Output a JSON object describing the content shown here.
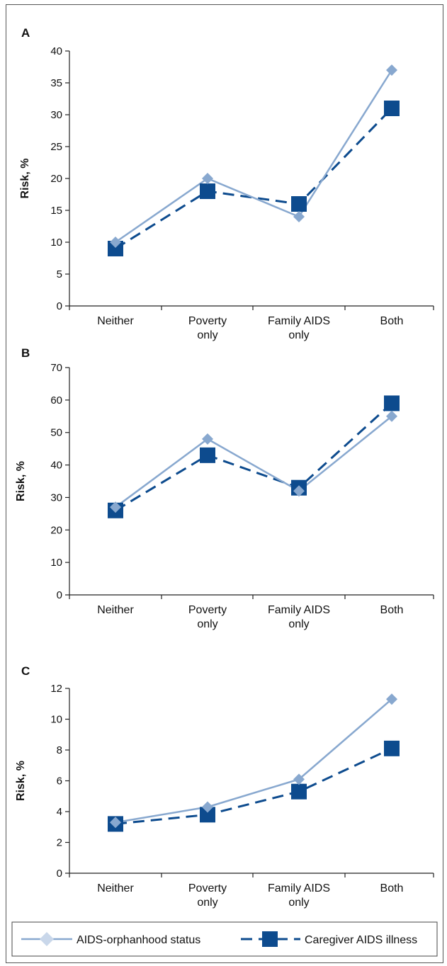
{
  "colors": {
    "orphan": "#88a8cf",
    "caregiver": "#0d4b8e",
    "axis": "#222222"
  },
  "legend": {
    "orphan_label": "AIDS-orphanhood status",
    "caregiver_label": "Caregiver AIDS illness",
    "orphan_marker": "diamond",
    "caregiver_marker": "square"
  },
  "chart_data": [
    {
      "type": "line",
      "panel": "A",
      "categories": [
        [
          "Neither"
        ],
        [
          "Poverty",
          "only"
        ],
        [
          "Family AIDS",
          "only"
        ],
        [
          "Both"
        ]
      ],
      "ylabel": "Risk, %",
      "ylim": [
        0,
        40
      ],
      "yticks": [
        0,
        5,
        10,
        15,
        20,
        25,
        30,
        35,
        40
      ],
      "series": [
        {
          "name": "AIDS-orphanhood status",
          "values": [
            10,
            20,
            14,
            37
          ]
        },
        {
          "name": "Caregiver AIDS illness",
          "values": [
            9,
            18,
            16,
            31
          ]
        }
      ]
    },
    {
      "type": "line",
      "panel": "B",
      "categories": [
        [
          "Neither"
        ],
        [
          "Poverty",
          "only"
        ],
        [
          "Family AIDS",
          "only"
        ],
        [
          "Both"
        ]
      ],
      "ylabel": "Risk, %",
      "ylim": [
        0,
        70
      ],
      "yticks": [
        0,
        10,
        20,
        30,
        40,
        50,
        60,
        70
      ],
      "series": [
        {
          "name": "AIDS-orphanhood status",
          "values": [
            27,
            48,
            32,
            55
          ]
        },
        {
          "name": "Caregiver AIDS illness",
          "values": [
            26,
            43,
            33,
            59
          ]
        }
      ]
    },
    {
      "type": "line",
      "panel": "C",
      "categories": [
        [
          "Neither"
        ],
        [
          "Poverty",
          "only"
        ],
        [
          "Family AIDS",
          "only"
        ],
        [
          "Both"
        ]
      ],
      "ylabel": "Risk, %",
      "ylim": [
        0,
        12
      ],
      "yticks": [
        0,
        2,
        4,
        6,
        8,
        10,
        12
      ],
      "series": [
        {
          "name": "AIDS-orphanhood status",
          "values": [
            3.3,
            4.3,
            6.1,
            11.3
          ]
        },
        {
          "name": "Caregiver AIDS illness",
          "values": [
            3.2,
            3.8,
            5.3,
            8.1
          ]
        }
      ]
    }
  ]
}
